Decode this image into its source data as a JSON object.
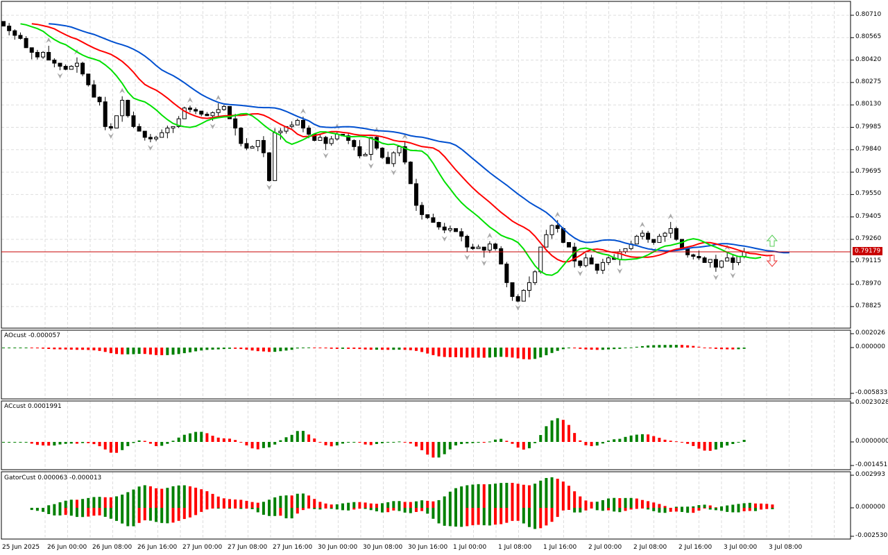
{
  "price_axis": [
    "0.80710",
    "0.80565",
    "0.80420",
    "0.80275",
    "0.80130",
    "0.79985",
    "0.79840",
    "0.79695",
    "0.79550",
    "0.79405",
    "0.79260",
    "0.79115",
    "0.78970",
    "0.78825"
  ],
  "current_price": "0.79179",
  "time_axis": [
    "25 Jun 2025",
    "26 Jun 00:00",
    "26 Jun 08:00",
    "26 Jun 16:00",
    "27 Jun 00:00",
    "27 Jun 08:00",
    "27 Jun 16:00",
    "30 Jun 00:00",
    "30 Jun 08:00",
    "30 Jun 16:00",
    "1 Jul 00:00",
    "1 Jul 08:00",
    "1 Jul 16:00",
    "2 Jul 00:00",
    "2 Jul 08:00",
    "2 Jul 16:00",
    "3 Jul 00:00",
    "3 Jul 08:00"
  ],
  "indicators": {
    "ao": {
      "label": "AOcust -0.000057",
      "axis": [
        "0.002026",
        "0.000000",
        "-0.005833"
      ]
    },
    "ac": {
      "label": "ACcust 0.0001991",
      "axis": [
        "0.0023028",
        "0.0000000",
        "-0.0014511"
      ]
    },
    "gator": {
      "label": "GatorCust 0.000063 -0.000013",
      "axis": [
        "0.002993",
        "0.000000",
        "-0.002530"
      ]
    }
  },
  "colors": {
    "jaw": "#0050d0",
    "teeth": "#ff0000",
    "lips": "#00e000",
    "up": "#008000",
    "down": "#ff0000",
    "price_line": "#c80000"
  },
  "chart_data": {
    "type": "candlestick",
    "ylim": [
      0.7876,
      0.8076
    ],
    "closes": [
      0.8064,
      0.8061,
      0.8058,
      0.8056,
      0.805,
      0.8047,
      0.8044,
      0.8047,
      0.8042,
      0.804,
      0.8038,
      0.8036,
      0.8038,
      0.804,
      0.8033,
      0.8026,
      0.8018,
      0.8015,
      0.7999,
      0.7998,
      0.8006,
      0.8016,
      0.8006,
      0.7999,
      0.7996,
      0.7992,
      0.7991,
      0.7992,
      0.7995,
      0.7998,
      0.7999,
      0.8004,
      0.8011,
      0.801,
      0.8009,
      0.8007,
      0.8006,
      0.8008,
      0.801,
      0.8012,
      0.8004,
      0.7998,
      0.7988,
      0.7985,
      0.7986,
      0.799,
      0.7982,
      0.7964,
      0.7995,
      0.7996,
      0.7999,
      0.8,
      0.8003,
      0.7998,
      0.7994,
      0.799,
      0.7992,
      0.7988,
      0.7991,
      0.7994,
      0.7993,
      0.799,
      0.7986,
      0.798,
      0.7981,
      0.7992,
      0.7985,
      0.7979,
      0.7975,
      0.7982,
      0.7986,
      0.7976,
      0.7962,
      0.7948,
      0.7942,
      0.794,
      0.7937,
      0.7934,
      0.7932,
      0.7933,
      0.7931,
      0.7928,
      0.7921,
      0.792,
      0.7921,
      0.7919,
      0.7923,
      0.792,
      0.791,
      0.7898,
      0.7889,
      0.7886,
      0.7893,
      0.7898,
      0.7905,
      0.7921,
      0.7929,
      0.7935,
      0.7933,
      0.7924,
      0.7921,
      0.7912,
      0.7909,
      0.7914,
      0.791,
      0.7906,
      0.7911,
      0.7914,
      0.7913,
      0.7918,
      0.792,
      0.7923,
      0.7928,
      0.793,
      0.7926,
      0.7924,
      0.7928,
      0.793,
      0.7933,
      0.7926,
      0.792,
      0.7916,
      0.7915,
      0.7914,
      0.7911,
      0.7913,
      0.7908,
      0.7912,
      0.7914,
      0.7911,
      0.7915,
      0.79179
    ]
  }
}
